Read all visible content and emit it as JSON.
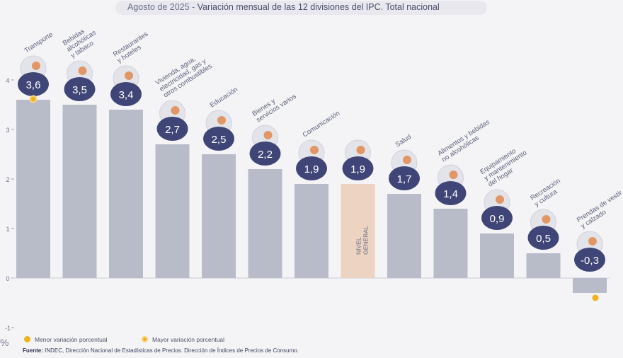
{
  "title": {
    "prefix": "Agosto de 2025 - ",
    "main": "Variación mensual de las 12 divisiones del IPC. Total nacional"
  },
  "legend": {
    "min_label": "Menor variación porcentual",
    "max_label": "Mayor variación porcentual"
  },
  "source": {
    "label": "Fuente:",
    "text": "INDEC, Dirección Nacional de Estadísticas de Precios. Dirección de Índices de Precios de Consumo."
  },
  "unit_label": "%",
  "colors": {
    "bar": "#b8bcc9",
    "general_bar": "#ecd3c2",
    "badge": "#3f4576",
    "marker": "#f0b21e",
    "text": "#5a5f7a"
  },
  "chart_data": {
    "type": "bar",
    "title": "Variación mensual de las 12 divisiones del IPC. Total nacional",
    "ylabel": "%",
    "ylim": [
      -1,
      4
    ],
    "yticks": [
      -1,
      0,
      1,
      2,
      3,
      4
    ],
    "grid": false,
    "legend_position": "bottom-left",
    "categories": [
      {
        "label": [
          "Transporte"
        ],
        "value": 3.6,
        "value_label": "3,6",
        "icon": "bus-card-icon",
        "marker": "max"
      },
      {
        "label": [
          "Bebidas",
          "alcohólicas",
          "y tabaco"
        ],
        "value": 3.5,
        "value_label": "3,5",
        "icon": "drinks-icon"
      },
      {
        "label": [
          "Restaurantes",
          "y hoteles"
        ],
        "value": 3.4,
        "value_label": "3,4",
        "icon": "plate-cutlery-icon"
      },
      {
        "label": [
          "Vivienda, agua,",
          "electricidad, gas y",
          "otros combustibles"
        ],
        "value": 2.7,
        "value_label": "2,7",
        "icon": "lightbulb-icon"
      },
      {
        "label": [
          "Educación"
        ],
        "value": 2.5,
        "value_label": "2,5",
        "icon": "notebook-icon"
      },
      {
        "label": [
          "Bienes y",
          "servicios varios"
        ],
        "value": 2.2,
        "value_label": "2,2",
        "icon": "comb-scissors-icon"
      },
      {
        "label": [
          "Comunicación"
        ],
        "value": 1.9,
        "value_label": "1,9",
        "icon": "phone-icon"
      },
      {
        "label": [
          "NIVEL",
          "GENERAL"
        ],
        "value": 1.9,
        "value_label": "1,9",
        "icon": "basket-icon",
        "general": true
      },
      {
        "label": [
          "Salud"
        ],
        "value": 1.7,
        "value_label": "1,7",
        "icon": "medical-cross-icon"
      },
      {
        "label": [
          "Alimentos y bebidas",
          "no alcohólicas"
        ],
        "value": 1.4,
        "value_label": "1,4",
        "icon": "food-icon"
      },
      {
        "label": [
          "Equipamiento",
          "y mantenimiento",
          "del hogar"
        ],
        "value": 0.9,
        "value_label": "0,9",
        "icon": "air-conditioner-icon"
      },
      {
        "label": [
          "Recreación",
          "y cultura"
        ],
        "value": 0.5,
        "value_label": "0,5",
        "icon": "beach-umbrella-icon"
      },
      {
        "label": [
          "Prendas de vestir",
          "y calzado"
        ],
        "value": -0.3,
        "value_label": "-0,3",
        "icon": "tshirt-icon",
        "marker": "min"
      }
    ]
  }
}
